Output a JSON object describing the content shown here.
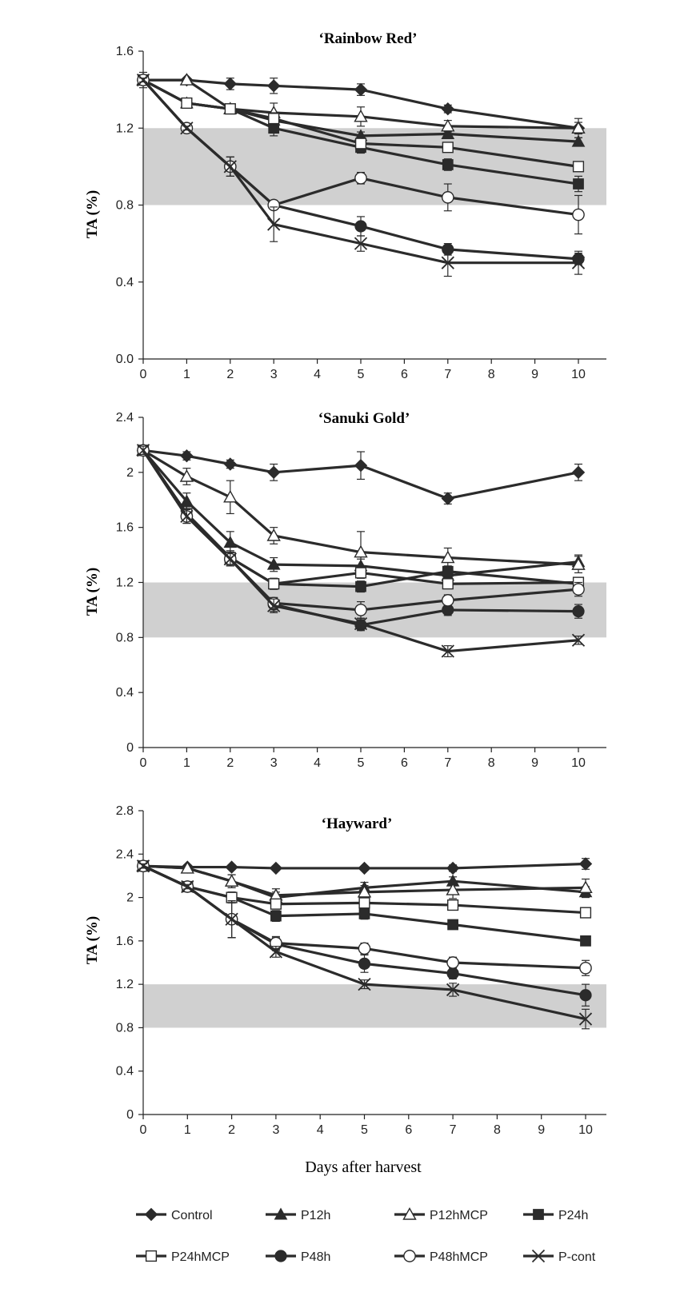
{
  "chart_data": [
    {
      "type": "line",
      "title": "‘Rainbow Red’",
      "ylabel": "TA (%)",
      "xlabel": "",
      "x": [
        0,
        1,
        2,
        3,
        5,
        7,
        10
      ],
      "xticks": [
        "0",
        "1",
        "2",
        "3",
        "4",
        "5",
        "6",
        "7",
        "8",
        "9",
        "10"
      ],
      "yticks": [
        "0.0",
        "0.4",
        "0.8",
        "1.2",
        "1.6"
      ],
      "ylim": [
        0,
        1.6
      ],
      "shaded_band": [
        0.8,
        1.2
      ],
      "series": [
        {
          "name": "Control",
          "values": [
            1.45,
            1.45,
            1.43,
            1.42,
            1.4,
            1.3,
            1.2
          ],
          "errors": [
            0.04,
            0.01,
            0.03,
            0.04,
            0.03,
            0.02,
            0.03
          ]
        },
        {
          "name": "P12h",
          "values": [
            1.45,
            1.33,
            1.3,
            1.24,
            1.16,
            1.17,
            1.13
          ],
          "errors": [
            0.01,
            0.01,
            0.02,
            0.02,
            0.02,
            0.02,
            0.02
          ]
        },
        {
          "name": "P12hMCP",
          "values": [
            1.45,
            1.45,
            1.3,
            1.28,
            1.26,
            1.21,
            1.2
          ],
          "errors": [
            0.01,
            0.01,
            0.02,
            0.05,
            0.05,
            0.03,
            0.05
          ]
        },
        {
          "name": "P24h",
          "values": [
            1.45,
            1.33,
            1.3,
            1.2,
            1.1,
            1.01,
            0.91
          ],
          "errors": [
            0.01,
            0.01,
            0.02,
            0.04,
            0.03,
            0.03,
            0.04
          ]
        },
        {
          "name": "P24hMCP",
          "values": [
            1.45,
            1.33,
            1.3,
            1.25,
            1.12,
            1.1,
            1.0
          ],
          "errors": [
            0.01,
            0.01,
            0.02,
            0.03,
            0.03,
            0.02,
            0.02
          ]
        },
        {
          "name": "P48h",
          "values": [
            1.45,
            1.2,
            1.0,
            0.8,
            0.69,
            0.57,
            0.52
          ],
          "errors": [
            0.01,
            0.01,
            0.05,
            0.02,
            0.05,
            0.03,
            0.03
          ]
        },
        {
          "name": "P48hMCP",
          "values": [
            1.45,
            1.2,
            1.0,
            0.8,
            0.94,
            0.84,
            0.75
          ],
          "errors": [
            0.01,
            0.01,
            0.05,
            0.02,
            0.03,
            0.07,
            0.1
          ]
        },
        {
          "name": "P-cont",
          "values": [
            1.45,
            1.2,
            1.0,
            0.7,
            0.6,
            0.5,
            0.5
          ],
          "errors": [
            0.01,
            0.01,
            0.05,
            0.09,
            0.04,
            0.07,
            0.06
          ]
        }
      ]
    },
    {
      "type": "line",
      "title": "‘Sanuki Gold’",
      "ylabel": "TA  (%)",
      "xlabel": "",
      "x": [
        0,
        1,
        2,
        3,
        5,
        7,
        10
      ],
      "xticks": [
        "0",
        "1",
        "2",
        "3",
        "4",
        "5",
        "6",
        "7",
        "8",
        "9",
        "10"
      ],
      "yticks": [
        "0",
        "0.4",
        "0.8",
        "1.2",
        "1.6",
        "2",
        "2.4"
      ],
      "ylim": [
        0,
        2.4
      ],
      "shaded_band": [
        0.8,
        1.2
      ],
      "series": [
        {
          "name": "Control",
          "values": [
            2.16,
            2.12,
            2.06,
            2.0,
            2.05,
            1.81,
            2.0
          ],
          "errors": [
            0.03,
            0.03,
            0.03,
            0.06,
            0.1,
            0.04,
            0.06
          ]
        },
        {
          "name": "P12h",
          "values": [
            2.16,
            1.79,
            1.49,
            1.33,
            1.32,
            1.25,
            1.35
          ],
          "errors": [
            0.03,
            0.06,
            0.08,
            0.05,
            0.05,
            0.05,
            0.05
          ]
        },
        {
          "name": "P12hMCP",
          "values": [
            2.16,
            1.97,
            1.82,
            1.54,
            1.42,
            1.38,
            1.33
          ],
          "errors": [
            0.03,
            0.06,
            0.12,
            0.06,
            0.15,
            0.07,
            0.06
          ]
        },
        {
          "name": "P24h",
          "values": [
            2.16,
            1.7,
            1.38,
            1.19,
            1.17,
            1.28,
            1.19
          ],
          "errors": [
            0.03,
            0.05,
            0.05,
            0.04,
            0.04,
            0.04,
            0.04
          ]
        },
        {
          "name": "P24hMCP",
          "values": [
            2.16,
            1.7,
            1.38,
            1.19,
            1.27,
            1.19,
            1.2
          ],
          "errors": [
            0.03,
            0.05,
            0.05,
            0.04,
            0.04,
            0.03,
            0.03
          ]
        },
        {
          "name": "P48h",
          "values": [
            2.16,
            1.68,
            1.37,
            1.04,
            0.89,
            1.0,
            0.99
          ],
          "errors": [
            0.03,
            0.05,
            0.05,
            0.05,
            0.04,
            0.04,
            0.05
          ]
        },
        {
          "name": "P48hMCP",
          "values": [
            2.16,
            1.68,
            1.37,
            1.05,
            1.0,
            1.07,
            1.15
          ],
          "errors": [
            0.03,
            0.05,
            0.05,
            0.04,
            0.06,
            0.04,
            0.05
          ]
        },
        {
          "name": "P-cont",
          "values": [
            2.16,
            1.68,
            1.37,
            1.03,
            0.9,
            0.7,
            0.78
          ],
          "errors": [
            0.03,
            0.05,
            0.05,
            0.05,
            0.04,
            0.04,
            0.03
          ]
        }
      ]
    },
    {
      "type": "line",
      "title": "‘Hayward’",
      "ylabel": "TA (%)",
      "xlabel": "Days after harvest",
      "x": [
        0,
        1,
        2,
        3,
        5,
        7,
        10
      ],
      "xticks": [
        "0",
        "1",
        "2",
        "3",
        "4",
        "5",
        "6",
        "7",
        "8",
        "9",
        "10"
      ],
      "yticks": [
        "0",
        "0.4",
        "0.8",
        "1.2",
        "1.6",
        "2",
        "2.4",
        "2.8"
      ],
      "ylim": [
        0,
        2.8
      ],
      "shaded_band": [
        0.8,
        1.2
      ],
      "series": [
        {
          "name": "Control",
          "values": [
            2.29,
            2.28,
            2.28,
            2.27,
            2.27,
            2.27,
            2.31
          ],
          "errors": [
            0.02,
            0.02,
            0.02,
            0.02,
            0.02,
            0.03,
            0.05
          ]
        },
        {
          "name": "P12h",
          "values": [
            2.29,
            2.27,
            2.15,
            2.0,
            2.09,
            2.15,
            2.05
          ],
          "errors": [
            0.02,
            0.02,
            0.06,
            0.05,
            0.05,
            0.04,
            0.05
          ]
        },
        {
          "name": "P12hMCP",
          "values": [
            2.29,
            2.27,
            2.15,
            2.02,
            2.05,
            2.07,
            2.09
          ],
          "errors": [
            0.02,
            0.02,
            0.06,
            0.06,
            0.06,
            0.08,
            0.08
          ]
        },
        {
          "name": "P24h",
          "values": [
            2.29,
            2.1,
            2.0,
            1.83,
            1.85,
            1.75,
            1.6
          ],
          "errors": [
            0.02,
            0.02,
            0.05,
            0.05,
            0.05,
            0.04,
            0.04
          ]
        },
        {
          "name": "P24hMCP",
          "values": [
            2.29,
            2.1,
            2.0,
            1.94,
            1.95,
            1.93,
            1.86
          ],
          "errors": [
            0.02,
            0.02,
            0.05,
            0.04,
            0.04,
            0.04,
            0.04
          ]
        },
        {
          "name": "P48h",
          "values": [
            2.29,
            2.1,
            1.8,
            1.57,
            1.39,
            1.3,
            1.1
          ],
          "errors": [
            0.02,
            0.02,
            0.17,
            0.06,
            0.08,
            0.05,
            0.1
          ]
        },
        {
          "name": "P48hMCP",
          "values": [
            2.29,
            2.1,
            1.8,
            1.58,
            1.53,
            1.4,
            1.35
          ],
          "errors": [
            0.02,
            0.02,
            0.17,
            0.06,
            0.05,
            0.05,
            0.07
          ]
        },
        {
          "name": "P-cont",
          "values": [
            2.29,
            2.1,
            1.8,
            1.5,
            1.2,
            1.15,
            0.88
          ],
          "errors": [
            0.02,
            0.02,
            0.17,
            0.05,
            0.04,
            0.06,
            0.09
          ]
        }
      ]
    }
  ],
  "legend": {
    "items": [
      "Control",
      "P12h",
      "P12hMCP",
      "P24h",
      "P24hMCP",
      "P48h",
      "P48hMCP",
      "P-cont"
    ],
    "placement": "bottom"
  },
  "colors": {
    "line": "#2b2b2b",
    "band": "#d0d0d0",
    "axis": "#222222"
  },
  "markers": {
    "Control": "filled-diamond",
    "P12h": "filled-triangle",
    "P12hMCP": "open-triangle",
    "P24h": "filled-square",
    "P24hMCP": "open-square",
    "P48h": "filled-circle",
    "P48hMCP": "open-circle",
    "P-cont": "x-cross"
  }
}
